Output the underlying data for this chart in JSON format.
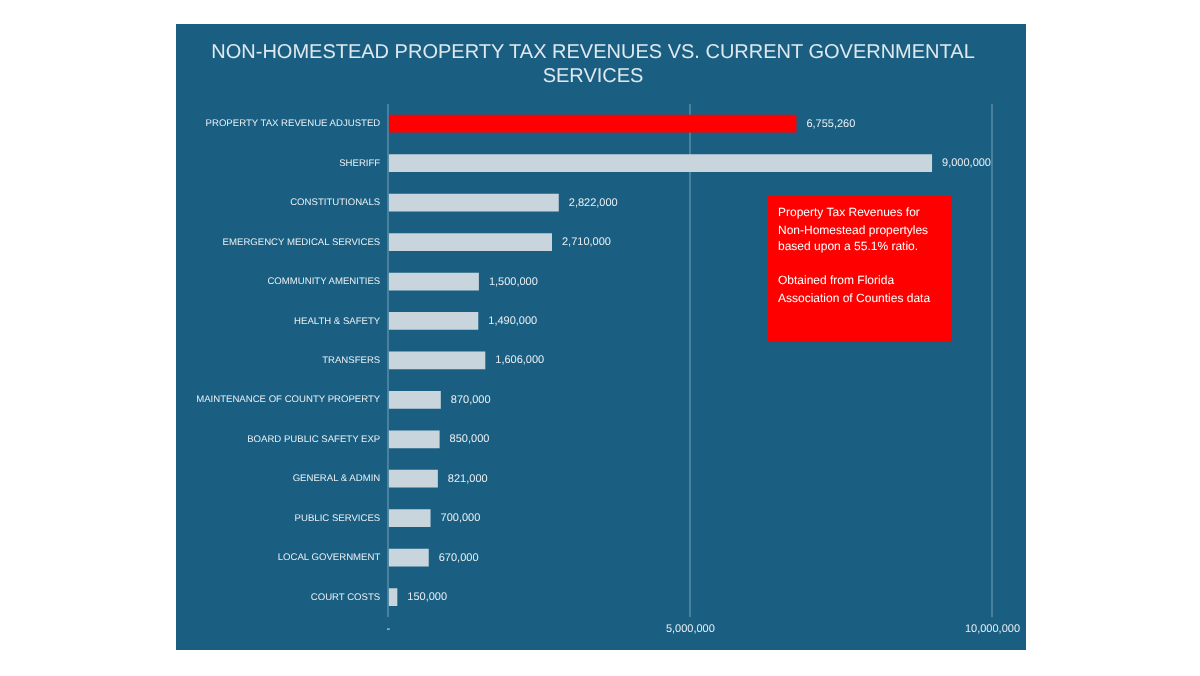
{
  "chart_data": {
    "type": "bar",
    "orientation": "horizontal",
    "title": "NON-HOMESTEAD PROPERTY TAX REVENUES VS. CURRENT GOVERNMENTAL SERVICES",
    "categories": [
      "PROPERTY TAX REVENUE ADJUSTED",
      "SHERIFF",
      "CONSTITUTIONALS",
      "EMERGENCY MEDICAL SERVICES",
      "COMMUNITY AMENITIES",
      "HEALTH & SAFETY",
      "TRANSFERS",
      "MAINTENANCE OF COUNTY PROPERTY",
      "BOARD PUBLIC SAFETY EXP",
      "GENERAL & ADMIN",
      "PUBLIC SERVICES",
      "LOCAL GOVERNMENT",
      "COURT COSTS"
    ],
    "values": [
      6755260,
      9000000,
      2822000,
      2710000,
      1500000,
      1490000,
      1606000,
      870000,
      850000,
      821000,
      700000,
      670000,
      150000
    ],
    "colors": [
      "#ff0000",
      "#c9d5dd",
      "#c9d5dd",
      "#c9d5dd",
      "#c9d5dd",
      "#c9d5dd",
      "#c9d5dd",
      "#c9d5dd",
      "#c9d5dd",
      "#c9d5dd",
      "#c9d5dd",
      "#c9d5dd",
      "#c9d5dd"
    ],
    "xlim": [
      0,
      10000000
    ],
    "xticks": [
      {
        "value": 0,
        "label": "-"
      },
      {
        "value": 5000000,
        "label": "5,000,000"
      },
      {
        "value": 10000000,
        "label": "10,000,000"
      }
    ],
    "value_labels": [
      "6,755,260",
      "9,000,000",
      "2,822,000",
      "2,710,000",
      "1,500,000",
      "1,490,000",
      "1,606,000",
      "870,000",
      "850,000",
      "821,000",
      "700,000",
      "670,000",
      "150,000"
    ],
    "grid": "x",
    "legend": false,
    "annotations": [
      "Property Tax Revenues for Non-Homestead propertyles based upon a 55.1% ratio.\n\nObtained from Florida Association of Counties data"
    ]
  }
}
